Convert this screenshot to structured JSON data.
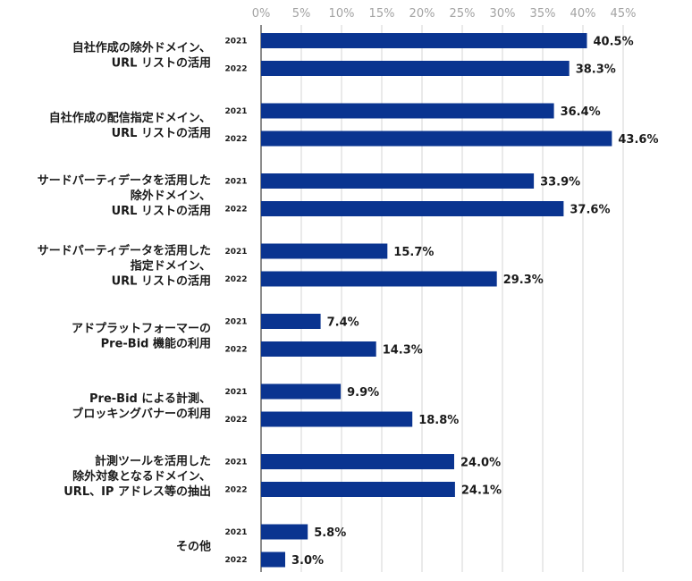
{
  "chart_data": {
    "type": "bar",
    "orientation": "horizontal",
    "bar_color": "#0a3490",
    "xlim": [
      0,
      45
    ],
    "ticks": [
      "0%",
      "5%",
      "10%",
      "15%",
      "20%",
      "25%",
      "30%",
      "35%",
      "40%",
      "45%"
    ],
    "tick_values": [
      0,
      5,
      10,
      15,
      20,
      25,
      30,
      35,
      40,
      45
    ],
    "series_years": [
      "2021",
      "2022"
    ],
    "groups": [
      {
        "label": [
          "自社作成の除外ドメイン、",
          "URL リストの活用"
        ],
        "values": [
          40.5,
          38.3
        ],
        "value_labels": [
          "40.5%",
          "38.3%"
        ]
      },
      {
        "label": [
          "自社作成の配信指定ドメイン、",
          "URL リストの活用"
        ],
        "values": [
          36.4,
          43.6
        ],
        "value_labels": [
          "36.4%",
          "43.6%"
        ]
      },
      {
        "label": [
          "サードパーティデータを活用した",
          "除外ドメイン、",
          "URL リストの活用"
        ],
        "values": [
          33.9,
          37.6
        ],
        "value_labels": [
          "33.9%",
          "37.6%"
        ]
      },
      {
        "label": [
          "サードパーティデータを活用した",
          "指定ドメイン、",
          "URL リストの活用"
        ],
        "values": [
          15.7,
          29.3
        ],
        "value_labels": [
          "15.7%",
          "29.3%"
        ]
      },
      {
        "label": [
          "アドプラットフォーマーの",
          "Pre-Bid 機能の利用"
        ],
        "values": [
          7.4,
          14.3
        ],
        "value_labels": [
          "7.4%",
          "14.3%"
        ]
      },
      {
        "label": [
          "Pre-Bid による計測、",
          "ブロッキングバナーの利用"
        ],
        "values": [
          9.9,
          18.8
        ],
        "value_labels": [
          "9.9%",
          "18.8%"
        ]
      },
      {
        "label": [
          "計測ツールを活用した",
          "除外対象となるドメイン、",
          "URL、IP アドレス等の抽出"
        ],
        "values": [
          24.0,
          24.1
        ],
        "value_labels": [
          "24.0%",
          "24.1%"
        ]
      },
      {
        "label": [
          "その他"
        ],
        "values": [
          5.8,
          3.0
        ],
        "value_labels": [
          "5.8%",
          "3.0%"
        ]
      }
    ]
  }
}
